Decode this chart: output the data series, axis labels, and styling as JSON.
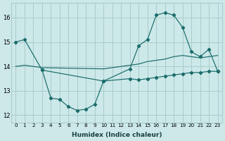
{
  "bg_color": "#cce8e8",
  "grid_color": "#aacccc",
  "line_color": "#1a6b6b",
  "xlabel": "Humidex (Indice chaleur)",
  "ylim": [
    11.7,
    16.6
  ],
  "xlim": [
    -0.5,
    23.5
  ],
  "yticks": [
    12,
    13,
    14,
    15,
    16
  ],
  "xticks": [
    0,
    1,
    2,
    3,
    4,
    5,
    6,
    7,
    8,
    9,
    10,
    11,
    12,
    13,
    14,
    15,
    16,
    17,
    18,
    19,
    20,
    21,
    22,
    23
  ],
  "seriesA_x": [
    0,
    1,
    3,
    10,
    13,
    14,
    15,
    16,
    17,
    18,
    19,
    20,
    21,
    22,
    23
  ],
  "seriesA_y": [
    15.0,
    15.1,
    13.85,
    13.4,
    13.5,
    13.45,
    13.5,
    13.55,
    13.6,
    13.65,
    13.7,
    13.75,
    13.75,
    13.8,
    13.8
  ],
  "seriesB_x": [
    3,
    4,
    5,
    6,
    7,
    8,
    9,
    10,
    13,
    14,
    15,
    16,
    17,
    18,
    19,
    20,
    21,
    22,
    23
  ],
  "seriesB_y": [
    13.85,
    12.7,
    12.65,
    12.35,
    12.2,
    12.25,
    12.45,
    13.4,
    13.9,
    14.85,
    15.1,
    16.1,
    16.2,
    16.1,
    15.6,
    14.6,
    14.4,
    14.7,
    13.8
  ],
  "seriesC_x": [
    0,
    1,
    3,
    10,
    13,
    14,
    15,
    16,
    17,
    18,
    19,
    20,
    21,
    22,
    23
  ],
  "seriesC_y": [
    14.0,
    14.05,
    13.95,
    13.9,
    14.05,
    14.1,
    14.2,
    14.25,
    14.3,
    14.4,
    14.45,
    14.4,
    14.35,
    14.4,
    14.45
  ]
}
